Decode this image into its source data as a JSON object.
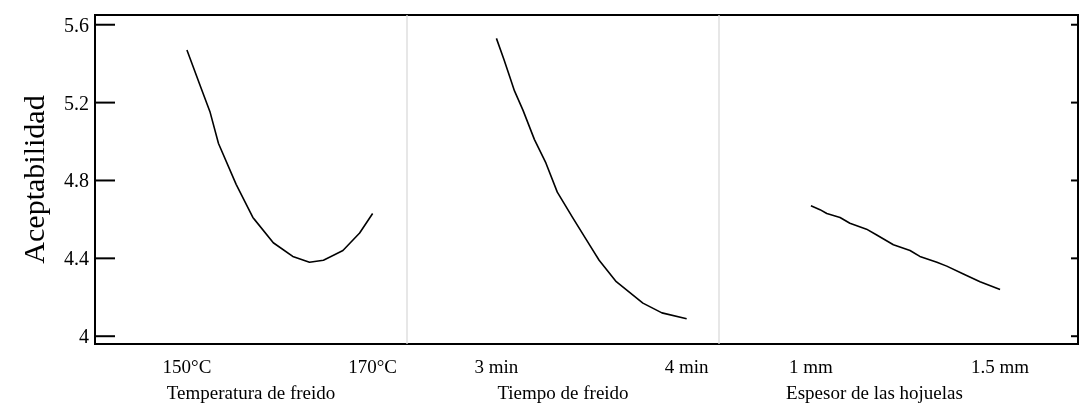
{
  "chart_data": [
    {
      "type": "line",
      "xlabel": "Temperatura de freido",
      "ylabel": "Aceptabilidad",
      "xlim": [
        140.1,
        173.7
      ],
      "xticks": [
        {
          "value": 150,
          "label": "150°C"
        },
        {
          "value": 170,
          "label": "170°C"
        }
      ],
      "ylim": [
        3.96,
        5.65
      ],
      "yticks": [
        4,
        4.4,
        4.8,
        5.2,
        5.6
      ],
      "series": [
        {
          "color": "#000000",
          "x": [
            150,
            151.4,
            152.5,
            153.4,
            155.3,
            157.1,
            159.3,
            161.4,
            163.2,
            164.7,
            166.8,
            168.6,
            170
          ],
          "values": [
            5.47,
            5.29,
            5.15,
            4.99,
            4.78,
            4.61,
            4.48,
            4.41,
            4.38,
            4.39,
            4.44,
            4.53,
            4.63
          ]
        }
      ]
    },
    {
      "type": "line",
      "xlabel": "Tiempo de freido",
      "xlim": [
        2.53,
        4.17
      ],
      "xticks": [
        {
          "value": 3,
          "label": "3 min"
        },
        {
          "value": 4,
          "label": "4 min"
        }
      ],
      "ylim": [
        3.96,
        5.65
      ],
      "tick_labels": "x",
      "series": [
        {
          "color": "#000000",
          "x": [
            3.0,
            3.04,
            3.095,
            3.14,
            3.2,
            3.26,
            3.32,
            3.4,
            3.47,
            3.54,
            3.63,
            3.77,
            3.87,
            4.0
          ],
          "values": [
            5.53,
            5.42,
            5.26,
            5.16,
            5.01,
            4.89,
            4.74,
            4.61,
            4.5,
            4.39,
            4.28,
            4.17,
            4.12,
            4.09
          ]
        }
      ]
    },
    {
      "type": "line",
      "xlabel": "Espesor de las hojuelas",
      "xlim": [
        0.757,
        1.706
      ],
      "xticks": [
        {
          "value": 1,
          "label": "1 mm"
        },
        {
          "value": 1.5,
          "label": "1.5 mm"
        }
      ],
      "ylim": [
        3.96,
        5.65
      ],
      "yticks": [
        4,
        4.4,
        4.8,
        5.2,
        5.6
      ],
      "tick_labels": "x",
      "series": [
        {
          "color": "#000000",
          "x": [
            1.0,
            1.024,
            1.042,
            1.077,
            1.103,
            1.147,
            1.174,
            1.218,
            1.262,
            1.288,
            1.333,
            1.359,
            1.403,
            1.447,
            1.5
          ],
          "values": [
            4.67,
            4.65,
            4.63,
            4.61,
            4.58,
            4.55,
            4.52,
            4.47,
            4.44,
            4.41,
            4.38,
            4.36,
            4.32,
            4.28,
            4.24
          ]
        }
      ]
    }
  ]
}
